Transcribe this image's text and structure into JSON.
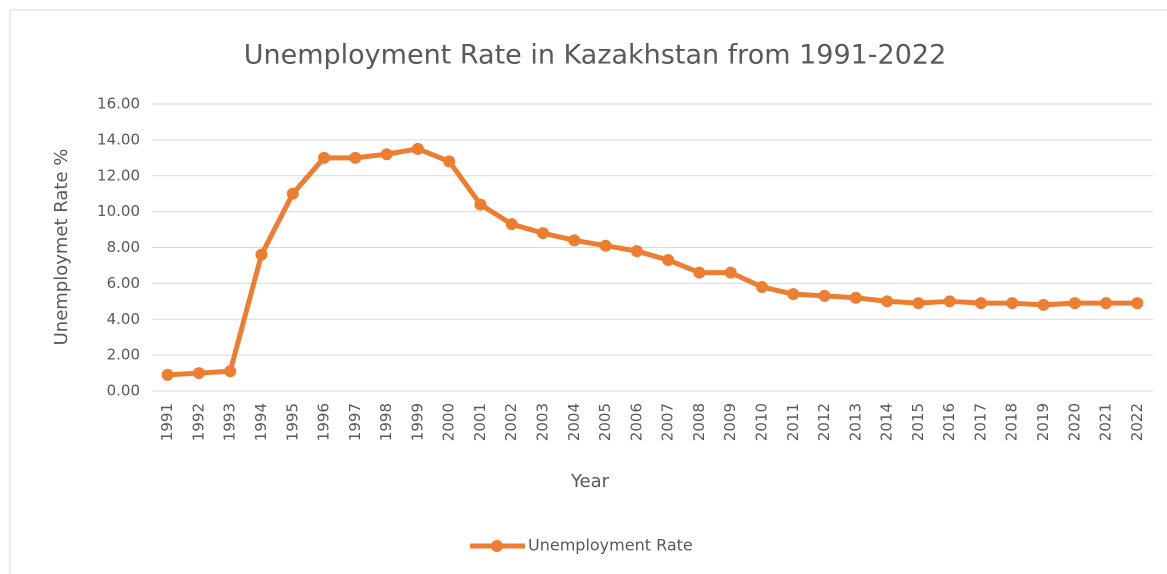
{
  "chart_data": {
    "type": "line",
    "title": "Unemployment  Rate in Kazakhstan from 1991-2022",
    "x_label": "Year",
    "y_label": "Unemploymet Rate %",
    "categories": [
      "1991",
      "1992",
      "1993",
      "1994",
      "1995",
      "1996",
      "1997",
      "1998",
      "1999",
      "2000",
      "2001",
      "2002",
      "2003",
      "2004",
      "2005",
      "2006",
      "2007",
      "2008",
      "2009",
      "2010",
      "2011",
      "2012",
      "2013",
      "2014",
      "2015",
      "2016",
      "2017",
      "2018",
      "2019",
      "2020",
      "2021",
      "2022"
    ],
    "series": [
      {
        "name": "Unemployment Rate",
        "color": "#ed7d31",
        "values": [
          0.9,
          1.0,
          1.1,
          7.6,
          11.0,
          13.0,
          13.0,
          13.2,
          13.5,
          12.8,
          10.4,
          9.3,
          8.8,
          8.4,
          8.1,
          7.8,
          7.3,
          6.6,
          6.6,
          5.8,
          5.4,
          5.3,
          5.2,
          5.0,
          4.9,
          5.0,
          4.9,
          4.9,
          4.8,
          4.9,
          4.9,
          4.9
        ]
      }
    ],
    "ylim": [
      0,
      16
    ],
    "yticks": [
      {
        "value": 0,
        "label": "0.00"
      },
      {
        "value": 2,
        "label": "2.00"
      },
      {
        "value": 4,
        "label": "4.00"
      },
      {
        "value": 6,
        "label": "6.00"
      },
      {
        "value": 8,
        "label": "8.00"
      },
      {
        "value": 10,
        "label": "10.00"
      },
      {
        "value": 12,
        "label": "12.00"
      },
      {
        "value": 14,
        "label": "14.00"
      },
      {
        "value": 16,
        "label": "16.00"
      }
    ],
    "grid": true,
    "legend": "bottom"
  }
}
